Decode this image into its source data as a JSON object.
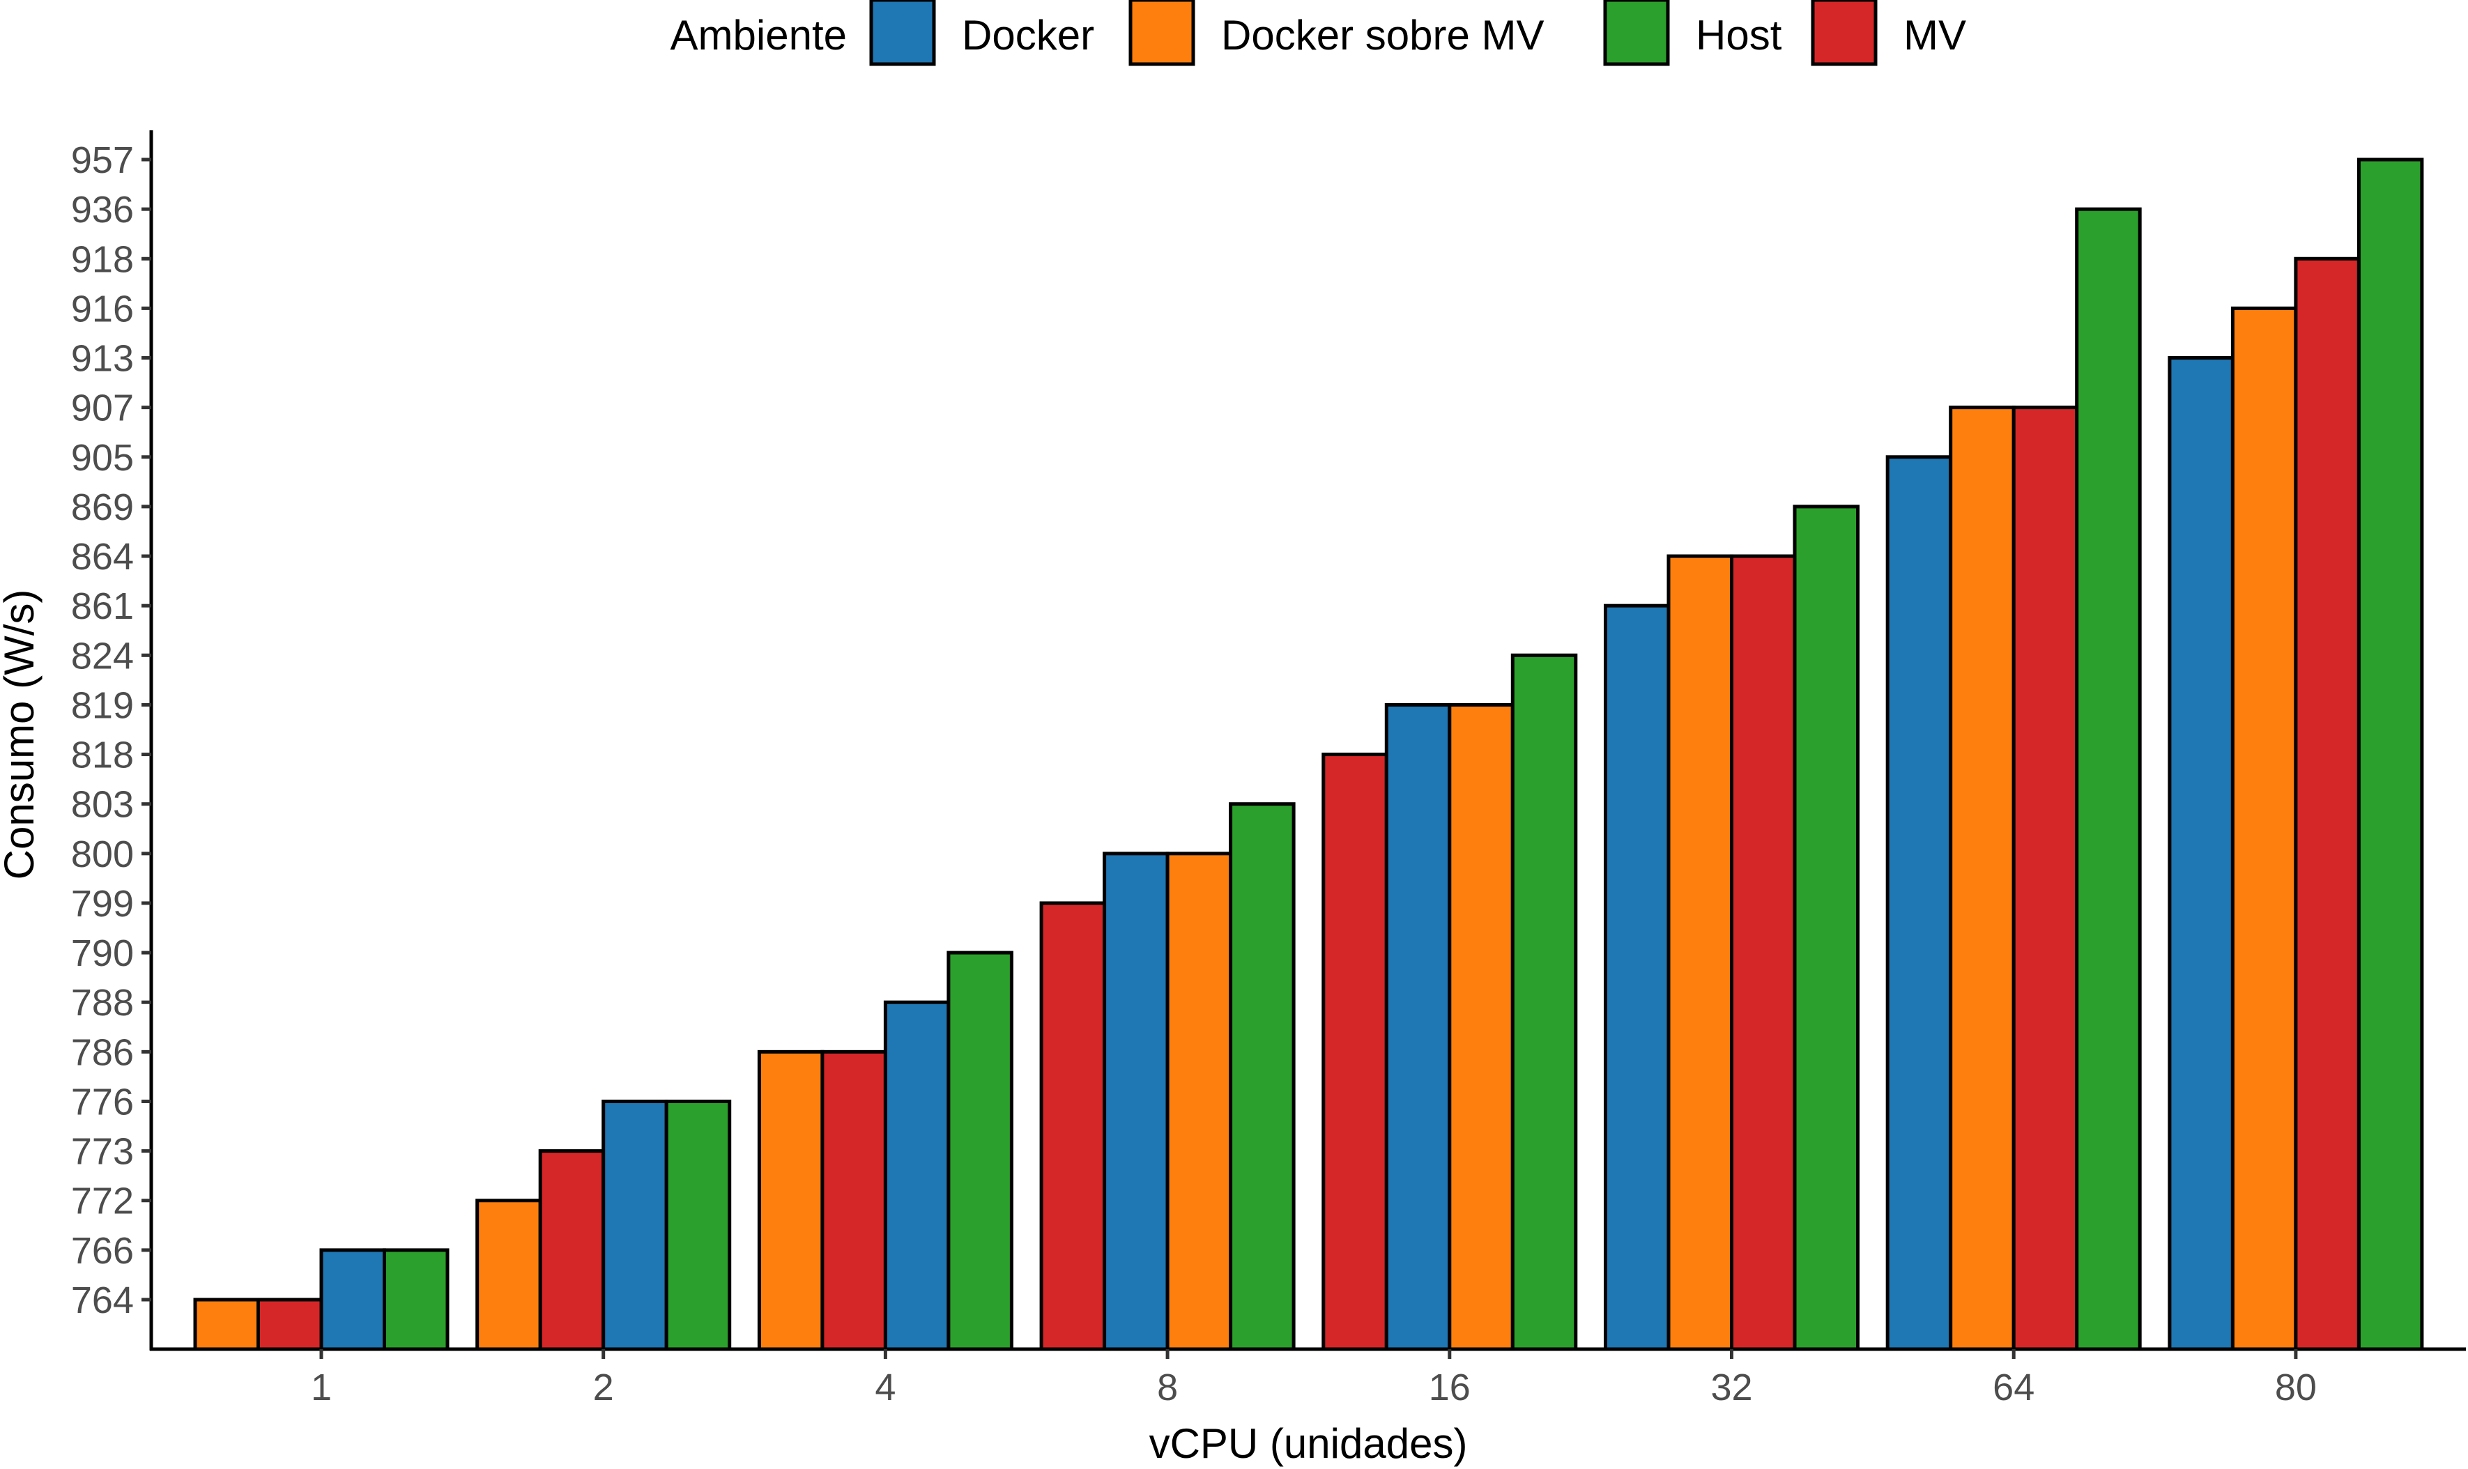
{
  "chart_data": {
    "type": "bar",
    "xlabel": "vCPU (unidades)",
    "ylabel": "Consumo (W/s)",
    "legend_title": "Ambiente",
    "legend_position": "top",
    "grid": false,
    "y_axis_scale": "categorical (each distinct value is one evenly spaced tick)",
    "y_ticks": [
      "764",
      "766",
      "772",
      "773",
      "776",
      "786",
      "788",
      "790",
      "799",
      "800",
      "803",
      "818",
      "819",
      "824",
      "861",
      "864",
      "869",
      "905",
      "907",
      "913",
      "916",
      "918",
      "936",
      "957"
    ],
    "categories": [
      "1",
      "2",
      "4",
      "8",
      "16",
      "32",
      "64",
      "80"
    ],
    "series_colors": {
      "Docker": "#1f77b4",
      "Docker sobre MV": "#ff7f0e",
      "Host": "#2ca02c",
      "MV": "#d62728"
    },
    "legend_order": [
      "Docker",
      "Docker sobre MV",
      "Host",
      "MV"
    ],
    "groups": [
      {
        "category": "1",
        "bars": [
          {
            "series": "Docker sobre MV",
            "value": 764
          },
          {
            "series": "MV",
            "value": 764
          },
          {
            "series": "Docker",
            "value": 766
          },
          {
            "series": "Host",
            "value": 766
          }
        ]
      },
      {
        "category": "2",
        "bars": [
          {
            "series": "Docker sobre MV",
            "value": 772
          },
          {
            "series": "MV",
            "value": 773
          },
          {
            "series": "Docker",
            "value": 776
          },
          {
            "series": "Host",
            "value": 776
          }
        ]
      },
      {
        "category": "4",
        "bars": [
          {
            "series": "Docker sobre MV",
            "value": 786
          },
          {
            "series": "MV",
            "value": 786
          },
          {
            "series": "Docker",
            "value": 788
          },
          {
            "series": "Host",
            "value": 790
          }
        ]
      },
      {
        "category": "8",
        "bars": [
          {
            "series": "MV",
            "value": 799
          },
          {
            "series": "Docker",
            "value": 800
          },
          {
            "series": "Docker sobre MV",
            "value": 800
          },
          {
            "series": "Host",
            "value": 803
          }
        ]
      },
      {
        "category": "16",
        "bars": [
          {
            "series": "MV",
            "value": 818
          },
          {
            "series": "Docker",
            "value": 819
          },
          {
            "series": "Docker sobre MV",
            "value": 819
          },
          {
            "series": "Host",
            "value": 824
          }
        ]
      },
      {
        "category": "32",
        "bars": [
          {
            "series": "Docker",
            "value": 861
          },
          {
            "series": "Docker sobre MV",
            "value": 864
          },
          {
            "series": "MV",
            "value": 864
          },
          {
            "series": "Host",
            "value": 869
          }
        ]
      },
      {
        "category": "64",
        "bars": [
          {
            "series": "Docker",
            "value": 905
          },
          {
            "series": "Docker sobre MV",
            "value": 907
          },
          {
            "series": "MV",
            "value": 907
          },
          {
            "series": "Host",
            "value": 936
          }
        ]
      },
      {
        "category": "80",
        "bars": [
          {
            "series": "Docker",
            "value": 913
          },
          {
            "series": "Docker sobre MV",
            "value": 916
          },
          {
            "series": "MV",
            "value": 918
          },
          {
            "series": "Host",
            "value": 957
          }
        ]
      }
    ]
  }
}
